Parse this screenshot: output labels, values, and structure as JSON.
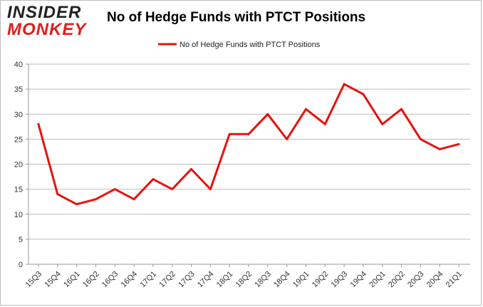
{
  "logo": {
    "line1": "INSIDER",
    "line2": "MONKEY"
  },
  "colors": {
    "series": "#e8120c",
    "grid": "#bdbdbd",
    "axis": "#999999",
    "logo_accent": "#e0201b"
  },
  "chart_data": {
    "type": "line",
    "title": "No of Hedge Funds with PTCT Positions",
    "xlabel": "",
    "ylabel": "",
    "ylim": [
      0,
      40
    ],
    "yticks": [
      0,
      5,
      10,
      15,
      20,
      25,
      30,
      35,
      40
    ],
    "grid": true,
    "legend_placement": "top-center",
    "categories": [
      "15Q3",
      "15Q4",
      "16Q1",
      "16Q2",
      "16Q3",
      "16Q4",
      "17Q1",
      "17Q2",
      "17Q3",
      "17Q4",
      "18Q1",
      "18Q2",
      "18Q3",
      "18Q4",
      "19Q1",
      "19Q2",
      "19Q3",
      "19Q4",
      "20Q1",
      "20Q2",
      "20Q3",
      "20Q4",
      "21Q1"
    ],
    "series": [
      {
        "name": "No of Hedge Funds with PTCT Positions",
        "values": [
          28,
          14,
          12,
          13,
          15,
          13,
          17,
          15,
          19,
          15,
          26,
          26,
          30,
          25,
          31,
          28,
          36,
          34,
          28,
          31,
          25,
          23,
          24
        ]
      }
    ]
  }
}
